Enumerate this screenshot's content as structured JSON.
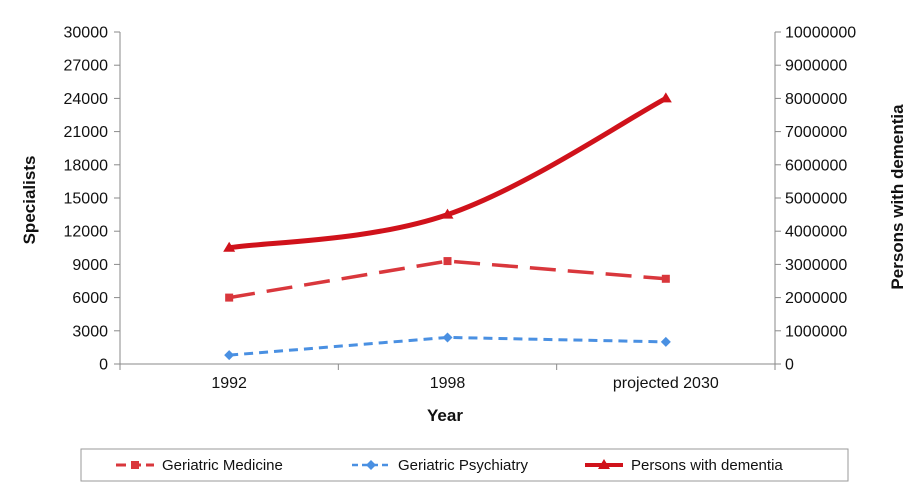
{
  "chart_data": {
    "type": "line",
    "title": "",
    "xlabel": "Year",
    "ylabel": "Specialists",
    "y2label": "Persons with dementia",
    "categories": [
      "1992",
      "1998",
      "projected 2030"
    ],
    "ylim": [
      0,
      30000
    ],
    "y2lim": [
      0,
      10000000
    ],
    "yticks": [
      "0",
      "3000",
      "6000",
      "9000",
      "12000",
      "15000",
      "18000",
      "21000",
      "24000",
      "27000",
      "30000"
    ],
    "y2ticks": [
      "0",
      "1000000",
      "2000000",
      "3000000",
      "4000000",
      "5000000",
      "6000000",
      "7000000",
      "8000000",
      "9000000",
      "10000000"
    ],
    "series": [
      {
        "name": "Geriatric Medicine",
        "axis": "left",
        "values": [
          6000,
          9300,
          7700
        ],
        "color": "#d9373c",
        "style": "dashed",
        "marker": "square"
      },
      {
        "name": "Geriatric Psychiatry",
        "axis": "left",
        "values": [
          800,
          2400,
          2000
        ],
        "color": "#4a90e2",
        "style": "dashed",
        "marker": "diamond"
      },
      {
        "name": "Persons with dementia",
        "axis": "right",
        "values": [
          3500000,
          4500000,
          8000000
        ],
        "color": "#d0121b",
        "style": "solid",
        "marker": "triangle"
      }
    ],
    "legend_position": "bottom"
  }
}
